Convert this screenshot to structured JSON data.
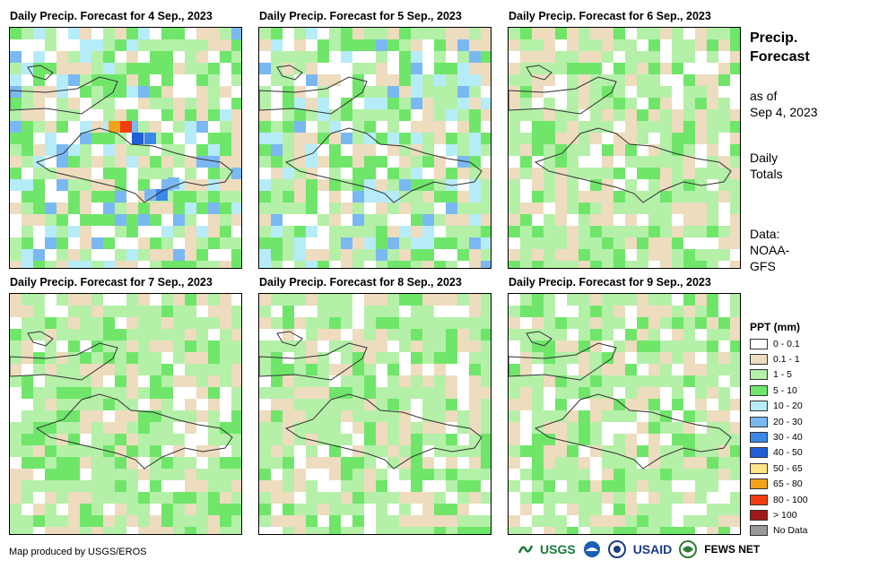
{
  "panels": [
    {
      "title": "Daily Precip. Forecast for 4 Sep., 2023",
      "wetness": 3
    },
    {
      "title": "Daily Precip. Forecast for 5 Sep., 2023",
      "wetness": 2
    },
    {
      "title": "Daily Precip. Forecast for 6 Sep., 2023",
      "wetness": 1
    },
    {
      "title": "Daily Precip. Forecast for 7 Sep., 2023",
      "wetness": 1
    },
    {
      "title": "Daily Precip. Forecast for 8 Sep., 2023",
      "wetness": 1
    },
    {
      "title": "Daily Precip. Forecast for 9 Sep., 2023",
      "wetness": 1
    }
  ],
  "sidebar": {
    "heading_line1": "Precip.",
    "heading_line2": "Forecast",
    "asof_line1": "as of",
    "asof_line2": "Sep 4, 2023",
    "totals_line1": "Daily",
    "totals_line2": "Totals",
    "source_line1": "Data:",
    "source_line2": "NOAA-",
    "source_line3": "GFS"
  },
  "legend": {
    "title": "PPT (mm)",
    "items": [
      {
        "label": "0 - 0.1",
        "color": "#ffffff"
      },
      {
        "label": "0.1 - 1",
        "color": "#eedcbf"
      },
      {
        "label": "1 - 5",
        "color": "#b4f0a8"
      },
      {
        "label": "5 - 10",
        "color": "#6fe66a"
      },
      {
        "label": "10 - 20",
        "color": "#b6ecf8"
      },
      {
        "label": "20 - 30",
        "color": "#7ab8f2"
      },
      {
        "label": "30 - 40",
        "color": "#3b88e8"
      },
      {
        "label": "40 - 50",
        "color": "#1f5fd8"
      },
      {
        "label": "50 - 65",
        "color": "#ffe58a"
      },
      {
        "label": "65 - 80",
        "color": "#f5a21a"
      },
      {
        "label": "80 - 100",
        "color": "#f03c10"
      },
      {
        "label": "> 100",
        "color": "#a01a1a"
      },
      {
        "label": "No Data",
        "color": "#9a9a9a"
      }
    ]
  },
  "footer": {
    "credit": "Map produced by USGS/EROS",
    "logo_usgs": "USGS",
    "logo_usaid": "USAID",
    "logo_fews": "FEWS NET"
  }
}
